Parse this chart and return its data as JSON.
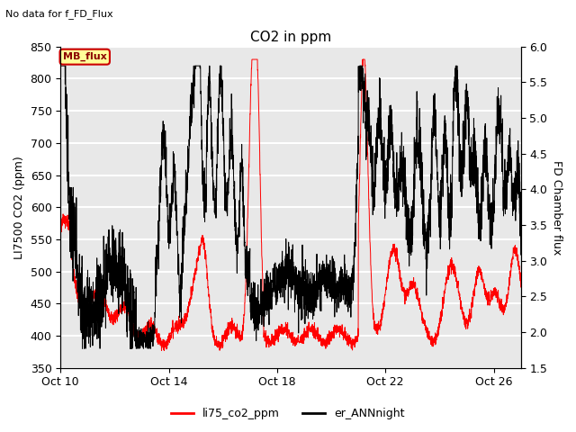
{
  "title": "CO2 in ppm",
  "suptitle": "No data for f_FD_Flux",
  "ylabel_left": "LI7500 CO2 (ppm)",
  "ylabel_right": "FD Chamber flux",
  "ylim_left": [
    350,
    850
  ],
  "ylim_right": [
    1.5,
    6.0
  ],
  "yticks_left": [
    350,
    400,
    450,
    500,
    550,
    600,
    650,
    700,
    750,
    800,
    850
  ],
  "yticks_right": [
    1.5,
    2.0,
    2.5,
    3.0,
    3.5,
    4.0,
    4.5,
    5.0,
    5.5,
    6.0
  ],
  "xtick_labels": [
    "Oct 10",
    "Oct 14",
    "Oct 18",
    "Oct 22",
    "Oct 26"
  ],
  "xtick_positions": [
    0,
    4,
    8,
    12,
    16
  ],
  "legend_labels": [
    "li75_co2_ppm",
    "er_ANNnight"
  ],
  "mb_flux_box_color": "#ffff99",
  "mb_flux_border_color": "#cc0000",
  "mb_flux_text": "MB_flux",
  "background_color": "#e8e8e8",
  "grid_color": "white",
  "xlim": [
    0,
    17
  ]
}
